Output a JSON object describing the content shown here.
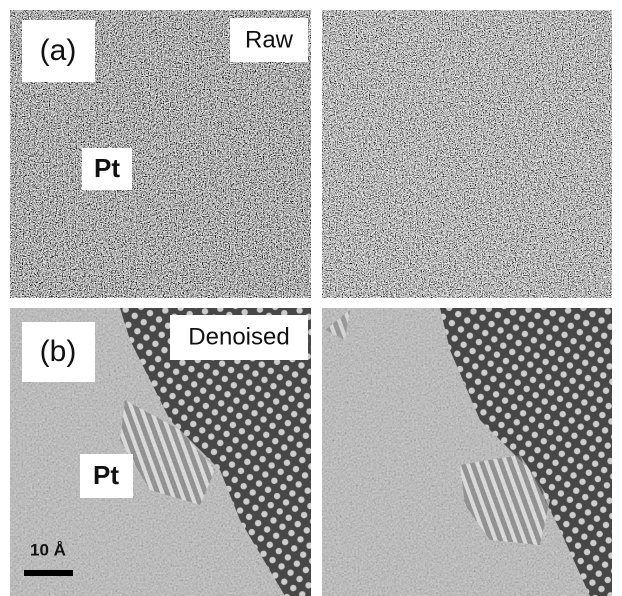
{
  "panels": {
    "a": {
      "label": "(a)",
      "tag": "Raw",
      "material": "Pt"
    },
    "b": {
      "label": "(b)",
      "tag": "Denoised",
      "material": "Pt",
      "scale_bar": "10 Å"
    }
  }
}
